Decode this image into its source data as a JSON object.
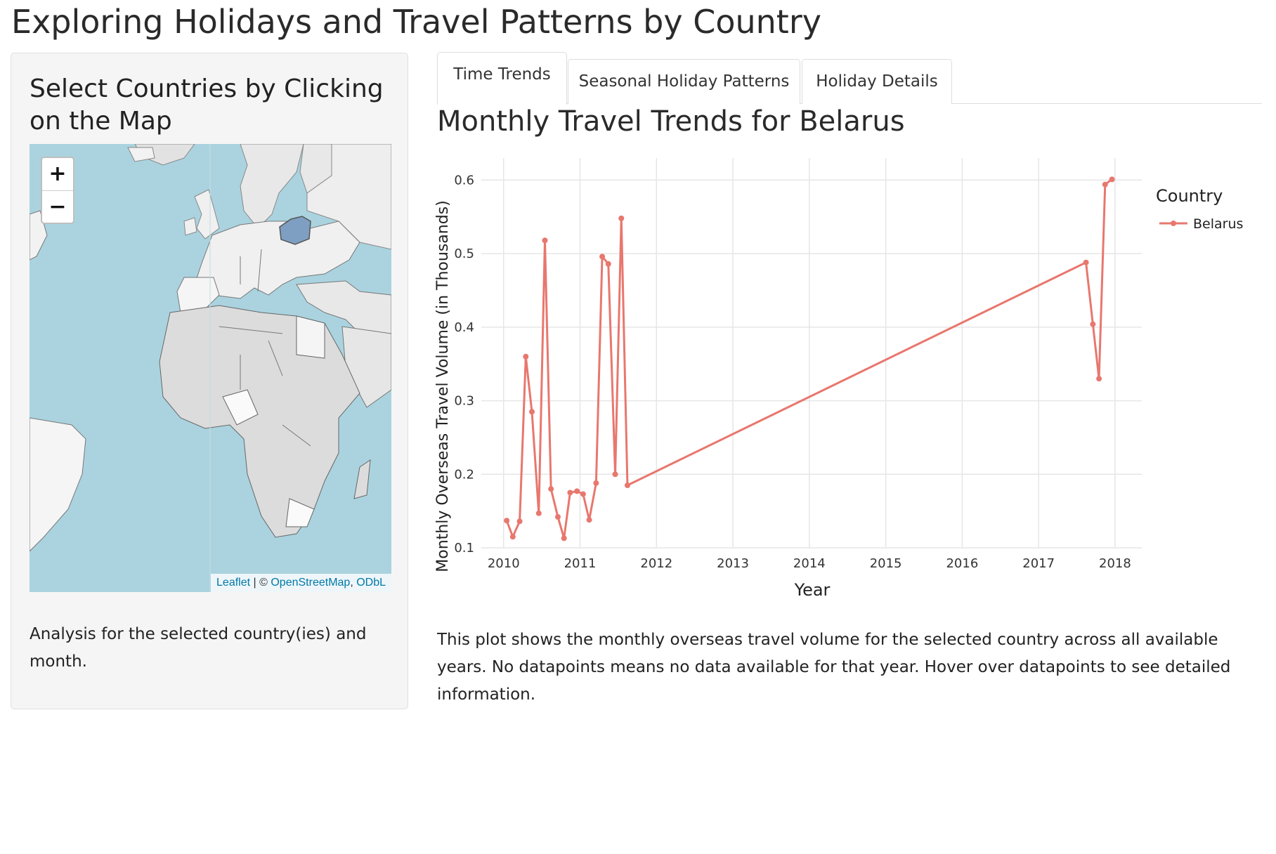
{
  "page": {
    "title": "Exploring Holidays and Travel Patterns by Country"
  },
  "sidebar": {
    "heading": "Select Countries by Clicking on the Map",
    "map": {
      "zoom_in": "+",
      "zoom_out": "−",
      "attribution": {
        "leaflet": "Leaflet",
        "separator": " | © ",
        "osm": "OpenStreetMap",
        "comma": ", ",
        "odbl": "ODbL"
      },
      "selected_country": "Belarus",
      "colors": {
        "water": "#aad3df",
        "land": "#e2e2e2",
        "selected": "#7f9fc2",
        "border": "#6b6b6b"
      }
    },
    "note": "Analysis for the selected country(ies) and month."
  },
  "tabs": [
    {
      "label": "Time Trends",
      "active": true
    },
    {
      "label": "Seasonal Holiday Patterns",
      "active": false
    },
    {
      "label": "Holiday Details",
      "active": false
    }
  ],
  "main": {
    "plot_title": "Monthly Travel Trends for Belarus",
    "description": "This plot shows the monthly overseas travel volume for the selected country across all available years. No datapoints means no data available for that year. Hover over datapoints to see detailed information."
  },
  "chart_data": {
    "type": "line",
    "title": "",
    "xlabel": "Year",
    "ylabel": "Monthly Overseas Travel Volume (in Thousands)",
    "xlim": [
      2009.8,
      2018.35
    ],
    "ylim": [
      0.1,
      0.63
    ],
    "xticks": [
      2010,
      2011,
      2012,
      2013,
      2014,
      2015,
      2016,
      2017,
      2018
    ],
    "yticks": [
      0.1,
      0.2,
      0.3,
      0.4,
      0.5,
      0.6
    ],
    "grid": true,
    "legend": {
      "title": "Country",
      "position": "right"
    },
    "series": [
      {
        "name": "Belarus",
        "color": "#e8776e",
        "x": [
          2010.04,
          2010.12,
          2010.21,
          2010.29,
          2010.37,
          2010.46,
          2010.54,
          2010.62,
          2010.71,
          2010.79,
          2010.87,
          2010.96,
          2011.04,
          2011.12,
          2011.21,
          2011.29,
          2011.37,
          2011.46,
          2011.54,
          2011.62,
          2017.62,
          2017.71,
          2017.79,
          2017.87,
          2017.96
        ],
        "y": [
          0.137,
          0.115,
          0.136,
          0.36,
          0.285,
          0.147,
          0.518,
          0.18,
          0.142,
          0.113,
          0.175,
          0.177,
          0.173,
          0.138,
          0.188,
          0.496,
          0.486,
          0.2,
          0.548,
          0.185,
          0.488,
          0.404,
          0.33,
          0.594,
          0.601
        ]
      }
    ]
  }
}
